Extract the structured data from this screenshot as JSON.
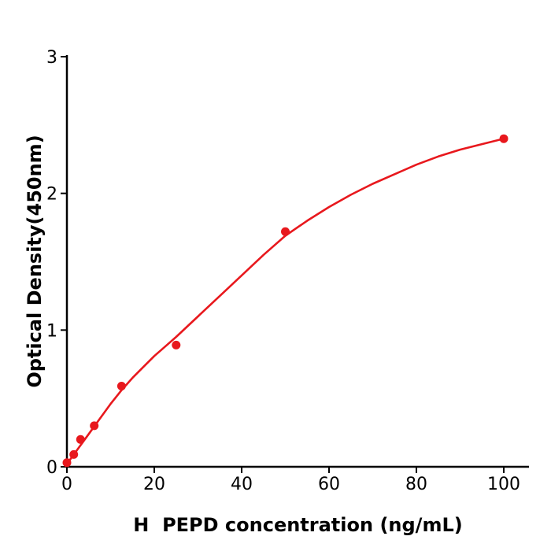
{
  "figure": {
    "background": "#ffffff",
    "axis_color": "#000000",
    "tick_label_color": "#000000"
  },
  "chart_data": {
    "type": "scatter",
    "title": "",
    "xlabel": "H  PEPD concentration (ng/mL)",
    "ylabel": "Optical Density(450nm)",
    "x_ticks": [
      0,
      20,
      40,
      60,
      80,
      100
    ],
    "y_ticks": [
      0,
      1,
      2,
      3
    ],
    "xlim": [
      0,
      100
    ],
    "ylim": [
      0,
      3
    ],
    "grid": false,
    "legend_position": "none",
    "accent_color": "#e8181d",
    "series": [
      {
        "name": "standard-data-points",
        "type": "scatter",
        "color": "#e8181d",
        "x": [
          0,
          1.56,
          3.12,
          6.25,
          12.5,
          25,
          50,
          100
        ],
        "y": [
          0.03,
          0.09,
          0.2,
          0.3,
          0.59,
          0.89,
          1.72,
          2.4
        ]
      },
      {
        "name": "fitted-curve",
        "type": "line",
        "color": "#e8181d",
        "x": [
          0,
          2.5,
          5,
          7.5,
          10,
          12.5,
          15,
          17.5,
          20,
          22.5,
          25,
          30,
          35,
          40,
          45,
          50,
          55,
          60,
          65,
          70,
          75,
          80,
          85,
          90,
          95,
          100
        ],
        "y": [
          0.02,
          0.13,
          0.24,
          0.35,
          0.46,
          0.56,
          0.65,
          0.73,
          0.81,
          0.88,
          0.95,
          1.1,
          1.25,
          1.4,
          1.55,
          1.69,
          1.8,
          1.9,
          1.99,
          2.07,
          2.14,
          2.21,
          2.27,
          2.32,
          2.36,
          2.4
        ]
      }
    ]
  }
}
